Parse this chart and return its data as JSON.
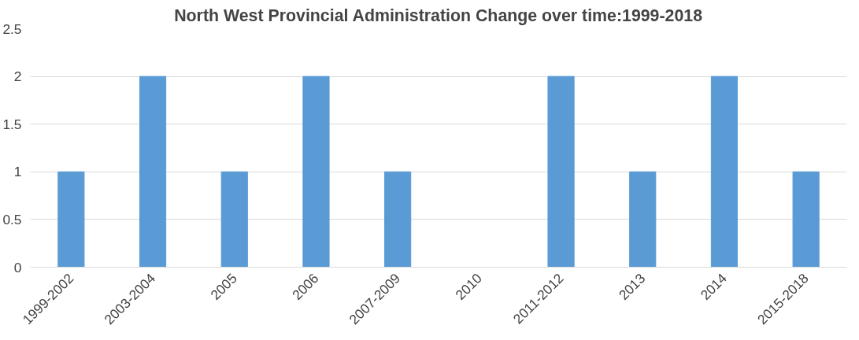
{
  "chart_data": {
    "type": "bar",
    "title": "North West Provincial Administration Change over time:1999-2018",
    "categories": [
      "1999-2002",
      "2003-2004",
      "2005",
      "2006",
      "2007-2009",
      "2010",
      "2011-2012",
      "2013",
      "2014",
      "2015-2018"
    ],
    "values": [
      1,
      2,
      1,
      2,
      1,
      0,
      2,
      1,
      2,
      1
    ],
    "color": "#5b9bd5",
    "ylim": [
      0,
      2.5
    ],
    "yticks": [
      0,
      {
        "value": 0.5,
        "label": "0.5"
      },
      1,
      {
        "value": 1.5,
        "label": "1.5"
      },
      2,
      {
        "value": 2.5,
        "label": "2.5"
      }
    ],
    "grid": "y"
  }
}
